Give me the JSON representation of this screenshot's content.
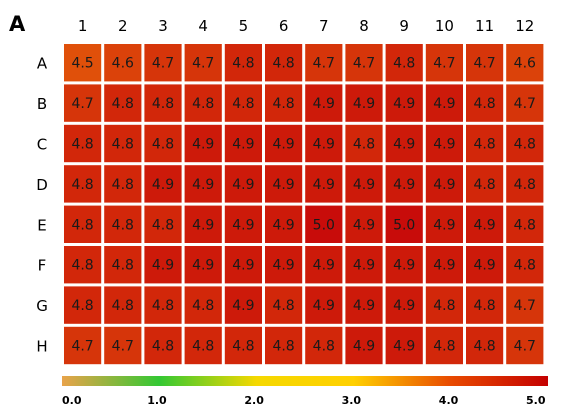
{
  "panel_label": "A",
  "chart_data": {
    "type": "heatmap",
    "title": "",
    "columns": [
      "1",
      "2",
      "3",
      "4",
      "5",
      "6",
      "7",
      "8",
      "9",
      "10",
      "11",
      "12"
    ],
    "rows": [
      "A",
      "B",
      "C",
      "D",
      "E",
      "F",
      "G",
      "H"
    ],
    "values": [
      [
        4.5,
        4.6,
        4.7,
        4.7,
        4.8,
        4.8,
        4.7,
        4.7,
        4.8,
        4.7,
        4.7,
        4.6
      ],
      [
        4.7,
        4.8,
        4.8,
        4.8,
        4.8,
        4.8,
        4.9,
        4.9,
        4.9,
        4.9,
        4.8,
        4.7
      ],
      [
        4.8,
        4.8,
        4.8,
        4.9,
        4.9,
        4.9,
        4.9,
        4.8,
        4.9,
        4.9,
        4.8,
        4.8
      ],
      [
        4.8,
        4.8,
        4.9,
        4.9,
        4.9,
        4.9,
        4.9,
        4.9,
        4.9,
        4.9,
        4.8,
        4.8
      ],
      [
        4.8,
        4.8,
        4.8,
        4.9,
        4.9,
        4.9,
        5.0,
        4.9,
        5.0,
        4.9,
        4.9,
        4.8
      ],
      [
        4.8,
        4.8,
        4.9,
        4.9,
        4.9,
        4.9,
        4.9,
        4.9,
        4.9,
        4.9,
        4.9,
        4.8
      ],
      [
        4.8,
        4.8,
        4.8,
        4.8,
        4.9,
        4.8,
        4.9,
        4.9,
        4.9,
        4.8,
        4.8,
        4.7
      ],
      [
        4.7,
        4.7,
        4.8,
        4.8,
        4.8,
        4.8,
        4.8,
        4.9,
        4.9,
        4.8,
        4.8,
        4.7
      ]
    ],
    "colorbar": {
      "range": [
        0.0,
        5.0
      ],
      "ticks": [
        "0.0",
        "1.0",
        "2.0",
        "3.0",
        "4.0",
        "5.0"
      ],
      "colors": [
        "#e9a34a",
        "#33c833",
        "#f5d800",
        "#ffd000",
        "#e84a00",
        "#c40000"
      ]
    },
    "grid": true
  }
}
